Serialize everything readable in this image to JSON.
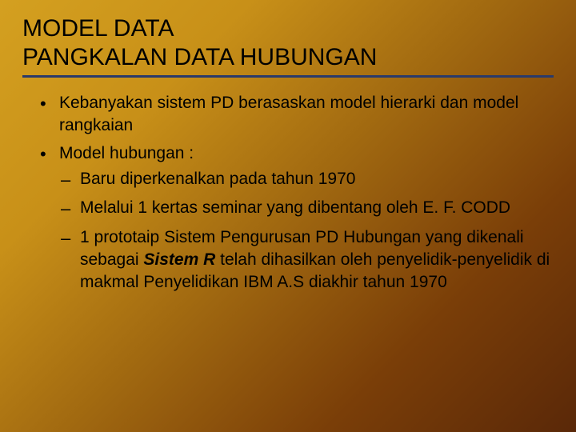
{
  "title_line1": "MODEL DATA",
  "title_line2": "PANGKALAN DATA HUBUNGAN",
  "bullets": [
    "Kebanyakan sistem PD berasaskan model hierarki dan model rangkaian",
    "Model hubungan :"
  ],
  "sub": [
    "Baru diperkenalkan pada tahun 1970",
    "Melalui 1 kertas seminar yang dibentang oleh E. F. CODD"
  ],
  "sub3_pre": "1 prototaip Sistem Pengurusan PD Hubungan yang dikenali sebagai ",
  "sub3_em": "Sistem R",
  "sub3_post": " telah dihasilkan oleh penyelidik-penyelidik di makmal Penyelidikan IBM A.S diakhir tahun 1970",
  "colors": {
    "underline": "#2a3a6a",
    "bg_start": "#d4a020",
    "bg_end": "#5a2808"
  },
  "fontsize": {
    "title": 30,
    "body": 21
  }
}
